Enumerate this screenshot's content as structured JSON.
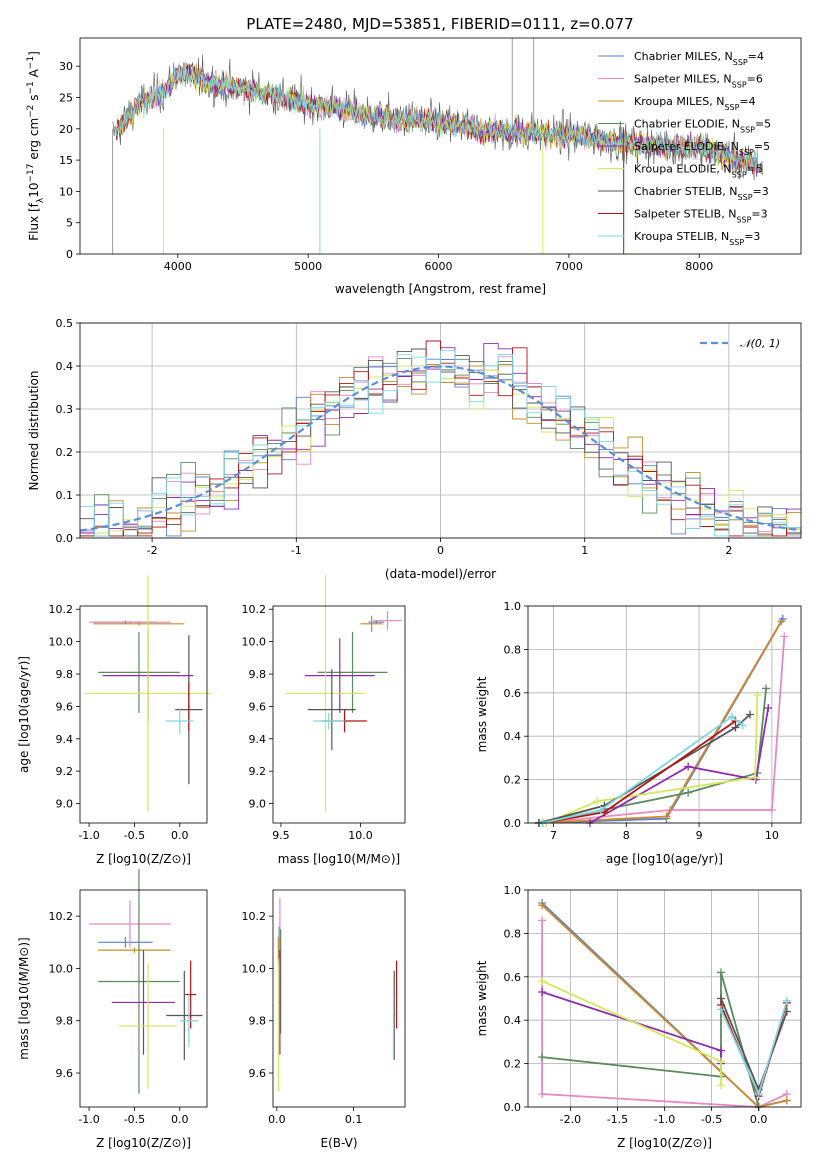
{
  "title": "PLATE=2480, MJD=53851, FIBERID=0111, z=0.077",
  "colors": [
    "#5b7fd4",
    "#e58ac2",
    "#c98b2b",
    "#5a8a5e",
    "#8f2bb0",
    "#d4e85f",
    "#555555",
    "#b01515",
    "#7fd7e0"
  ],
  "models": [
    "Chabrier MILES, N_SSP=4",
    "Salpeter MILES, N_SSP=6",
    "Kroupa MILES, N_SSP=4",
    "Chabrier ELODIE, N_SSP=5",
    "Salpeter ELODIE, N_SSP=5",
    "Kroupa ELODIE, N_SSP=5",
    "Chabrier STELIB, N_SSP=3",
    "Salpeter STELIB, N_SSP=3",
    "Kroupa STELIB, N_SSP=3"
  ],
  "chart_data": [
    {
      "id": "spectrum",
      "type": "line",
      "xlabel": "wavelength [Angstrom, rest frame]",
      "ylabel": "Flux [f_λ 10^-17 erg cm^-2 s^-1 A^-1]",
      "xlim": [
        3250,
        8780
      ],
      "ylim": [
        0,
        34.5
      ],
      "xticks": [
        4000,
        5000,
        6000,
        7000,
        8000
      ],
      "yticks": [
        0,
        5,
        10,
        15,
        20,
        25,
        30
      ],
      "continuum": {
        "x": [
          3500,
          3700,
          3900,
          4000,
          4100,
          4300,
          4500,
          4800,
          5000,
          5200,
          5500,
          6000,
          6300,
          6500,
          7000,
          7500,
          8000,
          8500
        ],
        "y": [
          19,
          24,
          26,
          29,
          28.5,
          27,
          26.5,
          25,
          24,
          23.5,
          22,
          21,
          20,
          19.5,
          19,
          17.5,
          17,
          14
        ]
      },
      "legend_position": "upper right"
    },
    {
      "id": "residual",
      "type": "histogram",
      "xlabel": "(data-model)/error",
      "ylabel": "Normed distribution",
      "xlim": [
        -2.5,
        2.5
      ],
      "ylim": [
        0,
        0.5
      ],
      "xticks": [
        -2,
        -1,
        0,
        1,
        2
      ],
      "yticks": [
        0.0,
        0.1,
        0.2,
        0.3,
        0.4,
        0.5
      ],
      "bin_width": 0.1,
      "grid": true,
      "reference": {
        "name": "N(0,1)",
        "mean": 0,
        "sigma": 1
      },
      "legend_position": "upper right"
    },
    {
      "id": "age-vs-z",
      "type": "scatter",
      "xlabel": "Z [log10(Z/Z⊙)]",
      "ylabel": "age [log10(age/yr)]",
      "xlim": [
        -1.1,
        0.3
      ],
      "ylim": [
        8.88,
        10.22
      ],
      "xticks": [
        -1.0,
        -0.5,
        0.0
      ],
      "yticks": [
        9.0,
        9.2,
        9.4,
        9.6,
        9.8,
        10.0,
        10.2
      ],
      "points": [
        {
          "x": -0.6,
          "y": 10.12,
          "xerr": 0.35,
          "yerr": 0.01
        },
        {
          "x": -0.55,
          "y": 10.12,
          "xerr": 0.45,
          "yerr": 0.01
        },
        {
          "x": -0.45,
          "y": 10.11,
          "xerr": 0.5,
          "yerr": 0.01
        },
        {
          "x": -0.45,
          "y": 9.81,
          "xerr": 0.45,
          "yerr": 0.25
        },
        {
          "x": -0.35,
          "y": 9.79,
          "xerr": 0.5,
          "yerr": 0.28
        },
        {
          "x": -0.35,
          "y": 9.68,
          "xerr": 0.7,
          "yerr": 0.73
        },
        {
          "x": 0.1,
          "y": 9.58,
          "xerr": 0.15,
          "yerr": 0.46
        },
        {
          "x": 0.1,
          "y": 9.6,
          "xerr": 0.01,
          "yerr": 0.15
        },
        {
          "x": 0.0,
          "y": 9.51,
          "xerr": 0.15,
          "yerr": 0.08
        }
      ]
    },
    {
      "id": "age-vs-mass",
      "type": "scatter",
      "xlabel": "mass [log10(M/M⊙)]",
      "ylabel": "",
      "xlim": [
        9.45,
        10.28
      ],
      "ylim": [
        8.88,
        10.22
      ],
      "xticks": [
        9.5,
        10.0
      ],
      "yticks": [
        9.0,
        9.2,
        9.4,
        9.6,
        9.8,
        10.0,
        10.2
      ],
      "points": [
        {
          "x": 10.1,
          "y": 10.12,
          "xerr": 0.05,
          "yerr": 0.01
        },
        {
          "x": 10.17,
          "y": 10.13,
          "xerr": 0.09,
          "yerr": 0.06
        },
        {
          "x": 10.07,
          "y": 10.11,
          "xerr": 0.07,
          "yerr": 0.05
        },
        {
          "x": 9.95,
          "y": 9.81,
          "xerr": 0.22,
          "yerr": 0.25
        },
        {
          "x": 9.87,
          "y": 9.79,
          "xerr": 0.22,
          "yerr": 0.23
        },
        {
          "x": 9.78,
          "y": 9.68,
          "xerr": 0.25,
          "yerr": 0.73
        },
        {
          "x": 9.82,
          "y": 9.58,
          "xerr": 0.15,
          "yerr": 0.25
        },
        {
          "x": 9.9,
          "y": 9.51,
          "xerr": 0.14,
          "yerr": 0.07
        },
        {
          "x": 9.8,
          "y": 9.51,
          "xerr": 0.1,
          "yerr": 0.05
        }
      ]
    },
    {
      "id": "weight-vs-age",
      "type": "line",
      "xlabel": "age [log10(age/yr)]",
      "ylabel": "mass weight",
      "xlim": [
        6.65,
        10.4
      ],
      "ylim": [
        0,
        1
      ],
      "xticks": [
        7,
        8,
        9,
        10
      ],
      "yticks": [
        0.0,
        0.2,
        0.4,
        0.6,
        0.8,
        1.0
      ],
      "grid": true,
      "series": [
        {
          "x": [
            6.8,
            8.55,
            10.15
          ],
          "y": [
            0.0,
            0.02,
            0.94
          ]
        },
        {
          "x": [
            6.8,
            8.6,
            10.0,
            10.17
          ],
          "y": [
            0.0,
            0.06,
            0.06,
            0.86
          ]
        },
        {
          "x": [
            6.8,
            8.55,
            10.13
          ],
          "y": [
            0.0,
            0.03,
            0.93
          ]
        },
        {
          "x": [
            6.8,
            8.85,
            9.8,
            9.92
          ],
          "y": [
            0.0,
            0.14,
            0.23,
            0.62
          ]
        },
        {
          "x": [
            7.5,
            8.85,
            9.78,
            9.95
          ],
          "y": [
            0.0,
            0.26,
            0.2,
            0.53
          ]
        },
        {
          "x": [
            6.9,
            7.6,
            9.77,
            9.8
          ],
          "y": [
            0.0,
            0.1,
            0.21,
            0.59
          ]
        },
        {
          "x": [
            6.8,
            7.7,
            9.5,
            9.7
          ],
          "y": [
            0.0,
            0.08,
            0.44,
            0.5
          ]
        },
        {
          "x": [
            6.85,
            7.7,
            9.5
          ],
          "y": [
            0.0,
            0.05,
            0.47
          ]
        },
        {
          "x": [
            6.85,
            7.65,
            9.45,
            9.6
          ],
          "y": [
            0.0,
            0.06,
            0.49,
            0.45
          ]
        }
      ]
    },
    {
      "id": "mass-vs-z",
      "type": "scatter",
      "xlabel": "Z [log10(Z/Z⊙)]",
      "ylabel": "mass [log10(M/M⊙)]",
      "xlim": [
        -1.1,
        0.3
      ],
      "ylim": [
        9.47,
        10.3
      ],
      "xticks": [
        -1.0,
        -0.5,
        0.0
      ],
      "yticks": [
        9.6,
        9.8,
        10.0,
        10.2
      ],
      "points": [
        {
          "x": -0.6,
          "y": 10.1,
          "xerr": 0.3,
          "yerr": 0.02
        },
        {
          "x": -0.55,
          "y": 10.17,
          "xerr": 0.45,
          "yerr": 0.09
        },
        {
          "x": -0.5,
          "y": 10.07,
          "xerr": 0.4,
          "yerr": 0.01
        },
        {
          "x": -0.45,
          "y": 9.95,
          "xerr": 0.45,
          "yerr": 0.43
        },
        {
          "x": -0.4,
          "y": 9.87,
          "xerr": 0.35,
          "yerr": 0.2
        },
        {
          "x": -0.35,
          "y": 9.78,
          "xerr": 0.32,
          "yerr": 0.24
        },
        {
          "x": 0.05,
          "y": 9.82,
          "xerr": 0.2,
          "yerr": 0.17
        },
        {
          "x": 0.12,
          "y": 9.9,
          "xerr": 0.06,
          "yerr": 0.13
        },
        {
          "x": 0.1,
          "y": 9.8,
          "xerr": 0.1,
          "yerr": 0.1
        }
      ]
    },
    {
      "id": "mass-vs-ebv",
      "type": "scatter",
      "xlabel": "E(B-V)",
      "ylabel": "",
      "xlim": [
        -0.005,
        0.167
      ],
      "ylim": [
        9.47,
        10.3
      ],
      "xticks": [
        0.0,
        0.1
      ],
      "yticks": [
        9.6,
        9.8,
        10.0,
        10.2
      ],
      "points": [
        {
          "x": 0.003,
          "y": 10.1,
          "xerr": 0.001,
          "yerr": 0.06
        },
        {
          "x": 0.004,
          "y": 10.17,
          "xerr": 0.001,
          "yerr": 0.1
        },
        {
          "x": 0.002,
          "y": 10.07,
          "xerr": 0.001,
          "yerr": 0.05
        },
        {
          "x": 0.005,
          "y": 9.95,
          "xerr": 0.001,
          "yerr": 0.2
        },
        {
          "x": 0.004,
          "y": 9.87,
          "xerr": 0.001,
          "yerr": 0.2
        },
        {
          "x": 0.002,
          "y": 9.78,
          "xerr": 0.001,
          "yerr": 0.25
        },
        {
          "x": 0.153,
          "y": 9.82,
          "xerr": 0.001,
          "yerr": 0.17
        },
        {
          "x": 0.156,
          "y": 9.9,
          "xerr": 0.001,
          "yerr": 0.13
        },
        {
          "x": 0.152,
          "y": 9.8,
          "xerr": 0.001,
          "yerr": 0.15
        }
      ]
    },
    {
      "id": "weight-vs-z",
      "type": "line",
      "xlabel": "Z [log10(Z/Z⊙)]",
      "ylabel": "mass weight",
      "xlim": [
        -2.45,
        0.45
      ],
      "ylim": [
        0,
        1
      ],
      "xticks": [
        -2.0,
        -1.5,
        -1.0,
        -0.5,
        0.0
      ],
      "yticks": [
        0.0,
        0.2,
        0.4,
        0.6,
        0.8,
        1.0
      ],
      "grid": true,
      "series": [
        {
          "x": [
            -2.3,
            0.0,
            0.3
          ],
          "y": [
            0.94,
            0.0,
            0.03
          ]
        },
        {
          "x": [
            -2.3,
            -2.3,
            0.0,
            0.3
          ],
          "y": [
            0.86,
            0.06,
            0.0,
            0.06
          ]
        },
        {
          "x": [
            -2.3,
            0.0,
            0.3
          ],
          "y": [
            0.93,
            0.0,
            0.03
          ]
        },
        {
          "x": [
            -2.3,
            -0.4,
            -0.4,
            0.0
          ],
          "y": [
            0.23,
            0.14,
            0.62,
            0.0
          ]
        },
        {
          "x": [
            -2.3,
            -0.4,
            -0.4
          ],
          "y": [
            0.53,
            0.26,
            0.2
          ]
        },
        {
          "x": [
            -2.3,
            -0.4,
            -0.4
          ],
          "y": [
            0.58,
            0.21,
            0.1
          ]
        },
        {
          "x": [
            -0.4,
            0.0,
            0.3
          ],
          "y": [
            0.5,
            0.08,
            0.44
          ]
        },
        {
          "x": [
            -0.4,
            0.0,
            0.3
          ],
          "y": [
            0.47,
            0.05,
            0.48
          ]
        },
        {
          "x": [
            -0.4,
            0.0,
            0.3
          ],
          "y": [
            0.45,
            0.06,
            0.49
          ]
        }
      ]
    }
  ]
}
